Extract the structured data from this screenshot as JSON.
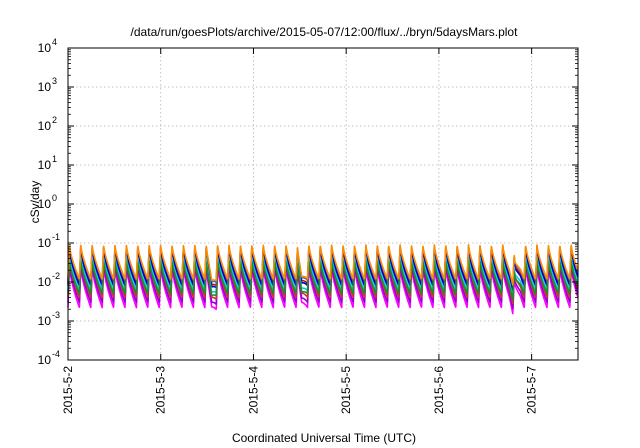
{
  "chart_data": {
    "type": "line",
    "title": "/data/run/goesPlots/archive/2015-05-07/12:00/flux/../bryn/5daysMars.plot",
    "xlabel": "Coordinated Universal Time (UTC)",
    "ylabel": "cSv/day",
    "x_tick_labels": [
      "2015-5-2",
      "2015-5-3",
      "2015-5-4",
      "2015-5-5",
      "2015-5-6",
      "2015-5-7"
    ],
    "x_range_days": [
      0,
      5.5
    ],
    "y_tick_labels": [
      {
        "base": "10",
        "exp": "-4"
      },
      {
        "base": "10",
        "exp": "-3"
      },
      {
        "base": "10",
        "exp": "-2"
      },
      {
        "base": "10",
        "exp": "-1"
      },
      {
        "base": "10",
        "exp": "0"
      },
      {
        "base": "10",
        "exp": "1"
      },
      {
        "base": "10",
        "exp": "2"
      },
      {
        "base": "10",
        "exp": "3"
      },
      {
        "base": "10",
        "exp": "4"
      }
    ],
    "ylim": [
      0.0001,
      10000
    ],
    "y_scale": "log",
    "grid": true,
    "cycles_per_day": 8.13,
    "dips": [
      {
        "day": 1.55,
        "factor": 0.45
      },
      {
        "day": 2.52,
        "factor": 0.45
      },
      {
        "day": 4.82,
        "factor": 0.5
      }
    ],
    "series": [
      {
        "color": "#ff00ff",
        "peak": 0.025,
        "trough": 0.0022
      },
      {
        "color": "#9400d3",
        "peak": 0.03,
        "trough": 0.003
      },
      {
        "color": "#cc3333",
        "peak": 0.04,
        "trough": 0.004
      },
      {
        "color": "#e60000",
        "peak": 0.075,
        "trough": 0.009
      },
      {
        "color": "#4169e1",
        "peak": 0.085,
        "trough": 0.011
      },
      {
        "color": "#0000cd",
        "peak": 0.065,
        "trough": 0.008
      },
      {
        "color": "#00ced1",
        "peak": 0.045,
        "trough": 0.006
      },
      {
        "color": "#228b22",
        "peak": 0.035,
        "trough": 0.005
      },
      {
        "color": "#ff8c00",
        "peak": 0.09,
        "trough": 0.012
      }
    ]
  }
}
